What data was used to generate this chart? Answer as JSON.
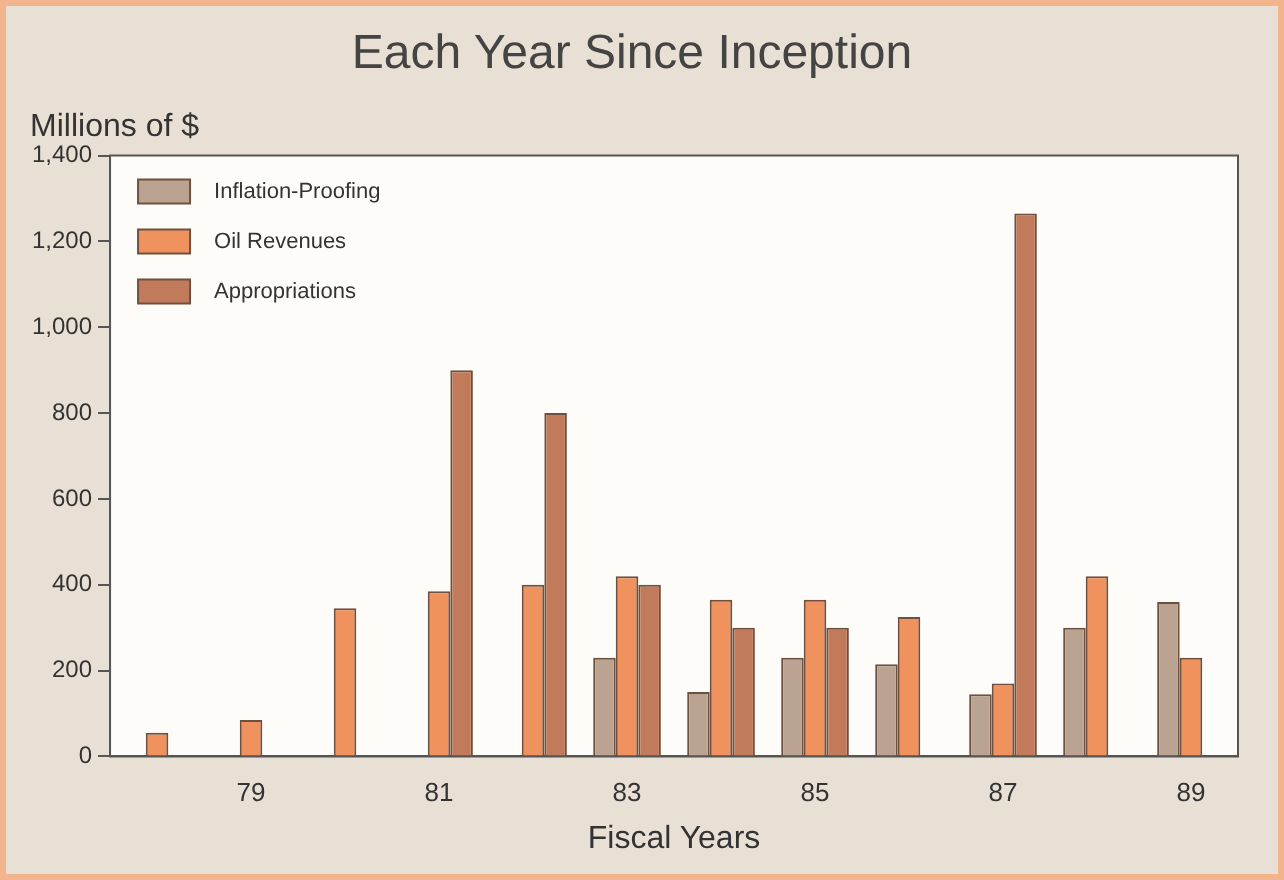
{
  "chart_data": {
    "type": "bar",
    "title": "Each Year Since Inception",
    "ylabel": "Millions of $",
    "xlabel": "Fiscal Years",
    "categories": [
      null,
      "79",
      null,
      "81",
      null,
      "83",
      null,
      "85",
      null,
      "87",
      null,
      "89"
    ],
    "series": [
      {
        "name": "Inflation-Proofing",
        "color": "#bba392",
        "values": [
          null,
          null,
          null,
          null,
          null,
          230,
          150,
          230,
          215,
          145,
          300,
          360
        ]
      },
      {
        "name": "Oil Revenues",
        "color": "#f0925e",
        "values": [
          55,
          85,
          345,
          385,
          400,
          420,
          365,
          365,
          325,
          170,
          420,
          230
        ]
      },
      {
        "name": "Appropriations",
        "color": "#c27b5a",
        "values": [
          null,
          null,
          null,
          900,
          800,
          400,
          300,
          300,
          null,
          1265,
          null,
          null
        ]
      }
    ],
    "ylim": [
      0,
      1400
    ],
    "yticks": [
      0,
      200,
      400,
      600,
      800,
      {
        "value": 1000,
        "label": "1,000"
      },
      {
        "value": 1200,
        "label": "1,200"
      },
      {
        "value": 1400,
        "label": "1,400"
      }
    ],
    "grid": false,
    "legend": "top left"
  }
}
